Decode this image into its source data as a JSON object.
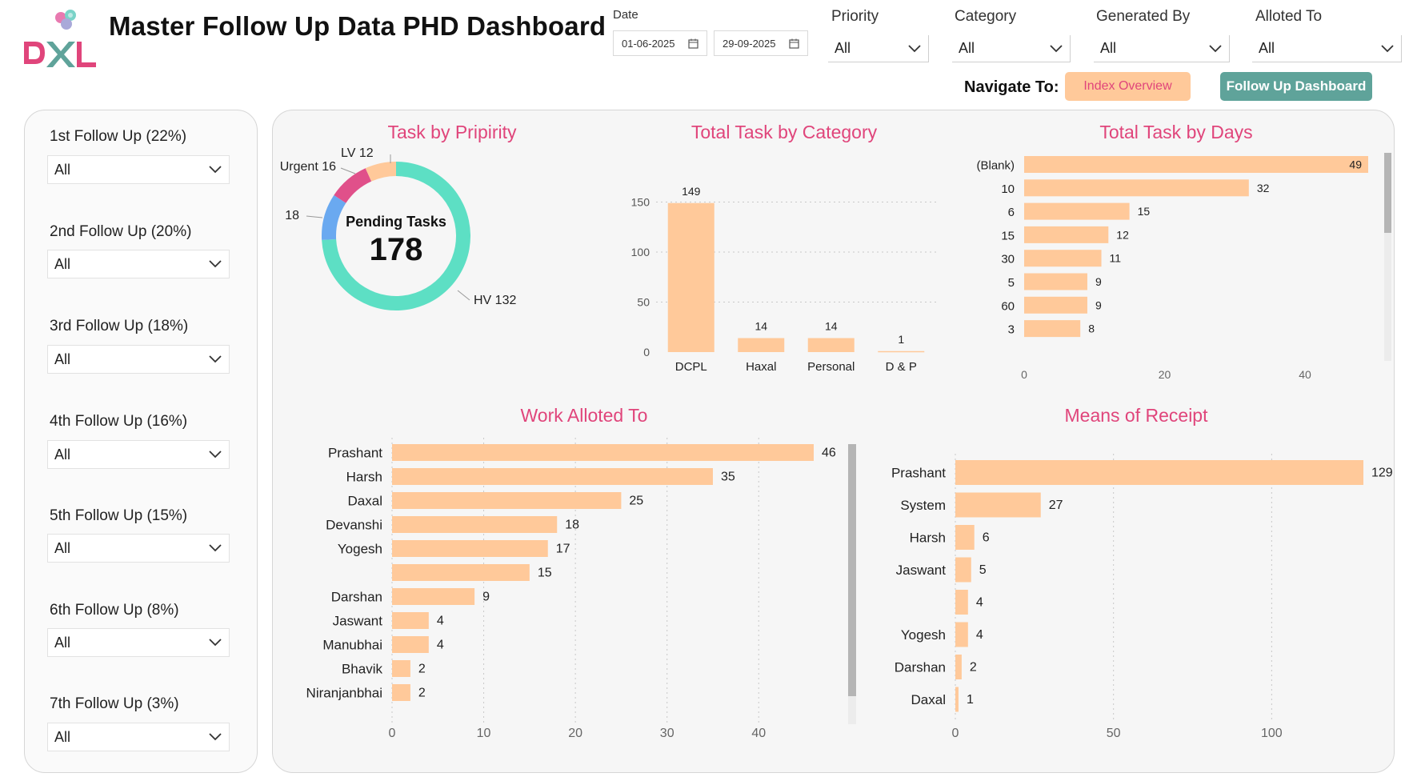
{
  "header": {
    "title": "Master Follow Up Data PHD Dashboard",
    "logo_text": "DXL"
  },
  "filters": {
    "date": {
      "label": "Date",
      "start": "01-06-2025",
      "end": "29-09-2025"
    },
    "priority": {
      "label": "Priority",
      "value": "All"
    },
    "category": {
      "label": "Category",
      "value": "All"
    },
    "generated_by": {
      "label": "Generated By",
      "value": "All"
    },
    "alloted_to": {
      "label": "Alloted To",
      "value": "All"
    }
  },
  "navigation": {
    "label": "Navigate To:",
    "index_overview": "Index Overview",
    "follow_up_dashboard": "Follow Up Dashboard"
  },
  "follow_ups": [
    {
      "label": "1st Follow Up (22%)",
      "value": "All"
    },
    {
      "label": "2nd Follow Up (20%)",
      "value": "All"
    },
    {
      "label": "3rd Follow Up (18%)",
      "value": "All"
    },
    {
      "label": "4th Follow Up (16%)",
      "value": "All"
    },
    {
      "label": "5th Follow Up (15%)",
      "value": "All"
    },
    {
      "label": "6th Follow Up (8%)",
      "value": "All"
    },
    {
      "label": "7th Follow Up (3%)",
      "value": "All"
    }
  ],
  "colors": {
    "accent_pink": "#e0457b",
    "bar_peach": "#ffc99a",
    "hv_teal": "#5ddfc4",
    "blue": "#6aa9f0",
    "nav_teal": "#5fa39a"
  },
  "chart_data": [
    {
      "id": "priority",
      "type": "pie",
      "title": "Task by Pripirity",
      "center_label": "Pending Tasks",
      "center_value": "178",
      "slices": [
        {
          "label": "HV",
          "value": 132,
          "display": "HV 132",
          "color": "#5ddfc4"
        },
        {
          "label": "",
          "value": 18,
          "display": "18",
          "color": "#6aa9f0"
        },
        {
          "label": "Urgent",
          "value": 16,
          "display": "Urgent 16",
          "color": "#e0508a"
        },
        {
          "label": "LV",
          "value": 12,
          "display": "LV 12",
          "color": "#ffc99a"
        }
      ]
    },
    {
      "id": "category",
      "type": "bar",
      "title": "Total Task by Category",
      "categories": [
        "DCPL",
        "Haxal",
        "Personal",
        "D & P"
      ],
      "values": [
        149,
        14,
        14,
        1
      ],
      "yticks": [
        0,
        50,
        100,
        150
      ],
      "ylim": [
        0,
        160
      ],
      "grid": true
    },
    {
      "id": "days",
      "type": "bar",
      "orientation": "horizontal",
      "title": "Total Task by Days",
      "categories": [
        "(Blank)",
        "10",
        "6",
        "15",
        "30",
        "5",
        "60",
        "3"
      ],
      "values": [
        49,
        32,
        15,
        12,
        11,
        9,
        9,
        8
      ],
      "xticks": [
        0,
        20,
        40
      ],
      "xlim": [
        0,
        49
      ]
    },
    {
      "id": "work",
      "type": "bar",
      "orientation": "horizontal",
      "title": "Work Alloted To",
      "categories": [
        "Prashant",
        "Harsh",
        "Daxal",
        "Devanshi",
        "Yogesh",
        "",
        "Darshan",
        "Jaswant",
        "Manubhai",
        "Bhavik",
        "Niranjanbhai"
      ],
      "values": [
        46,
        35,
        25,
        18,
        17,
        15,
        9,
        4,
        4,
        2,
        2
      ],
      "xticks": [
        0,
        10,
        20,
        30,
        40
      ],
      "xlim": [
        0,
        46
      ],
      "grid": true
    },
    {
      "id": "receipt",
      "type": "bar",
      "orientation": "horizontal",
      "title": "Means of Receipt",
      "categories": [
        "Prashant",
        "System",
        "Harsh",
        "Jaswant",
        "",
        "Yogesh",
        "Darshan",
        "Daxal"
      ],
      "values": [
        129,
        27,
        6,
        5,
        4,
        4,
        2,
        1
      ],
      "xticks": [
        0,
        50,
        100
      ],
      "xlim": [
        0,
        129
      ],
      "grid": true
    }
  ]
}
